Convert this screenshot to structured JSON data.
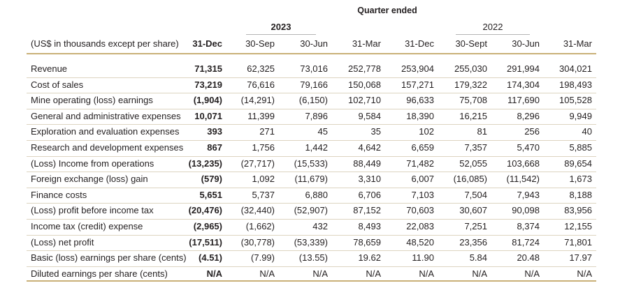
{
  "header": {
    "quarter_ended": "Quarter ended",
    "year_2023": "2023",
    "year_2022": "2022",
    "label_column": "(US$ in thousands except per share)",
    "columns": [
      "31-Dec",
      "30-Sep",
      "30-Jun",
      "31-Mar",
      "31-Dec",
      "30-Sept",
      "30-Jun",
      "31-Mar"
    ]
  },
  "rows": [
    {
      "label": "Revenue",
      "values": [
        "71,315",
        "62,325",
        "73,016",
        "252,778",
        "253,904",
        "255,030",
        "291,994",
        "304,021"
      ]
    },
    {
      "label": "Cost of sales",
      "values": [
        "73,219",
        "76,616",
        "79,166",
        "150,068",
        "157,271",
        "179,322",
        "174,304",
        "198,493"
      ]
    },
    {
      "label": "Mine operating (loss) earnings",
      "values": [
        "(1,904)",
        "(14,291)",
        "(6,150)",
        "102,710",
        "96,633",
        "75,708",
        "117,690",
        "105,528"
      ]
    },
    {
      "label": "General and administrative expenses",
      "values": [
        "10,071",
        "11,399",
        "7,896",
        "9,584",
        "18,390",
        "16,215",
        "8,296",
        "9,949"
      ]
    },
    {
      "label": "Exploration and evaluation expenses",
      "values": [
        "393",
        "271",
        "45",
        "35",
        "102",
        "81",
        "256",
        "40"
      ]
    },
    {
      "label": "Research and development expenses",
      "values": [
        "867",
        "1,756",
        "1,442",
        "4,642",
        "6,659",
        "7,357",
        "5,470",
        "5,885"
      ]
    },
    {
      "label": "(Loss) Income from operations",
      "values": [
        "(13,235)",
        "(27,717)",
        "(15,533)",
        "88,449",
        "71,482",
        "52,055",
        "103,668",
        "89,654"
      ]
    },
    {
      "label": "Foreign exchange (loss) gain",
      "values": [
        "(579)",
        "1,092",
        "(11,679)",
        "3,310",
        "6,007",
        "(16,085)",
        "(11,542)",
        "1,673"
      ]
    },
    {
      "label": "Finance costs",
      "values": [
        "5,651",
        "5,737",
        "6,880",
        "6,706",
        "7,103",
        "7,504",
        "7,943",
        "8,188"
      ]
    },
    {
      "label": "(Loss) profit before income tax",
      "values": [
        "(20,476)",
        "(32,440)",
        "(52,907)",
        "87,152",
        "70,603",
        "30,607",
        "90,098",
        "83,956"
      ]
    },
    {
      "label": "Income tax (credit) expense",
      "values": [
        "(2,965)",
        "(1,662)",
        "432",
        "8,493",
        "22,083",
        "7,251",
        "8,374",
        "12,155"
      ]
    },
    {
      "label": "(Loss) net profit",
      "values": [
        "(17,511)",
        "(30,778)",
        "(53,339)",
        "78,659",
        "48,520",
        "23,356",
        "81,724",
        "71,801"
      ]
    },
    {
      "label": "Basic (loss) earnings per share (cents)",
      "values": [
        "(4.51)",
        "(7.99)",
        "(13.55)",
        "19.62",
        "11.90",
        "5.84",
        "20.48",
        "17.97"
      ]
    },
    {
      "label": "Diluted earnings per share (cents)",
      "values": [
        "N/A",
        "N/A",
        "N/A",
        "N/A",
        "N/A",
        "N/A",
        "N/A",
        "N/A"
      ]
    }
  ],
  "colors": {
    "rule_gold": "#c9b077",
    "rule_light": "#ddd4c0",
    "text": "#231f20"
  }
}
